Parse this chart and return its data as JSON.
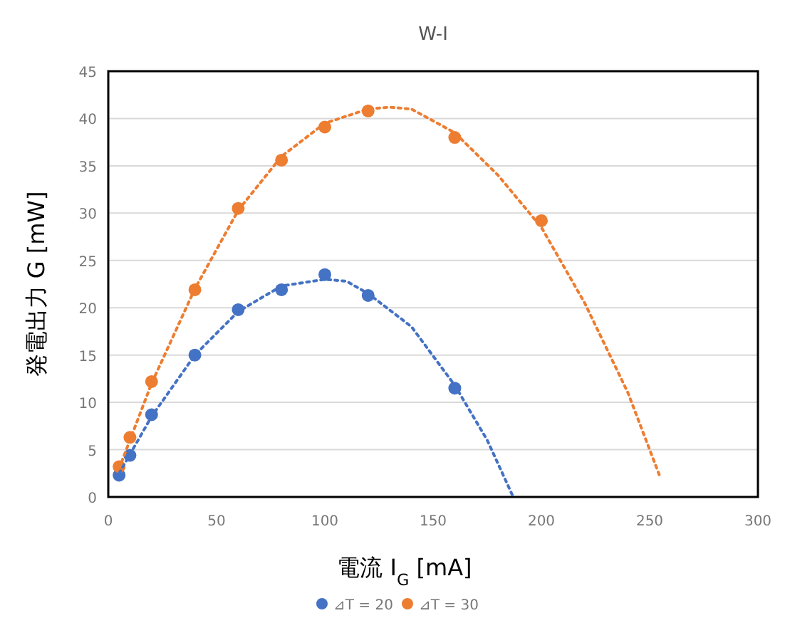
{
  "chart_data": {
    "type": "scatter",
    "title": "W-I",
    "xlabel": "電流 I$_{G}$ [mA]",
    "ylabel": "発電出力 G [mW]",
    "xlim": [
      0,
      300
    ],
    "xticks": [
      0,
      50,
      100,
      150,
      200,
      250,
      300
    ],
    "ylim": [
      0,
      45
    ],
    "yticks": [
      0,
      5,
      10,
      15,
      20,
      25,
      30,
      35,
      40,
      45
    ],
    "grid": "y",
    "legend": "bottom",
    "marker": "circle",
    "series": [
      {
        "name": "⊿T = 20",
        "color": "#4472c4",
        "x": [
          5,
          10,
          20,
          40,
          60,
          80,
          100,
          120,
          160
        ],
        "values": [
          2.3,
          4.4,
          8.7,
          15,
          19.8,
          21.9,
          23.5,
          21.3,
          11.5
        ]
      },
      {
        "name": "⊿T = 30",
        "color": "#ed7d31",
        "x": [
          5,
          10,
          20,
          40,
          60,
          80,
          100,
          120,
          160,
          200
        ],
        "values": [
          3.2,
          6.3,
          12.2,
          21.9,
          30.5,
          35.6,
          39.1,
          40.8,
          38,
          29.2
        ]
      },
      {
        "type": "line",
        "marker": "none",
        "line_style": "dotted",
        "color": "#4472c4",
        "x": [
          5,
          20,
          40,
          60,
          80,
          100,
          110,
          120,
          140,
          160,
          175,
          187
        ],
        "values": [
          2.5,
          8.5,
          15,
          19.6,
          22.3,
          23,
          22.8,
          21.5,
          18,
          11.8,
          6,
          0
        ]
      },
      {
        "type": "line",
        "marker": "none",
        "line_style": "dotted",
        "color": "#ed7d31",
        "x": [
          5,
          20,
          40,
          60,
          80,
          100,
          120,
          130,
          140,
          160,
          180,
          200,
          220,
          240,
          255
        ],
        "values": [
          3,
          12,
          22,
          30.3,
          36,
          39.5,
          41,
          41.2,
          41,
          38.5,
          34,
          28.5,
          20.5,
          11,
          2
        ]
      }
    ]
  }
}
